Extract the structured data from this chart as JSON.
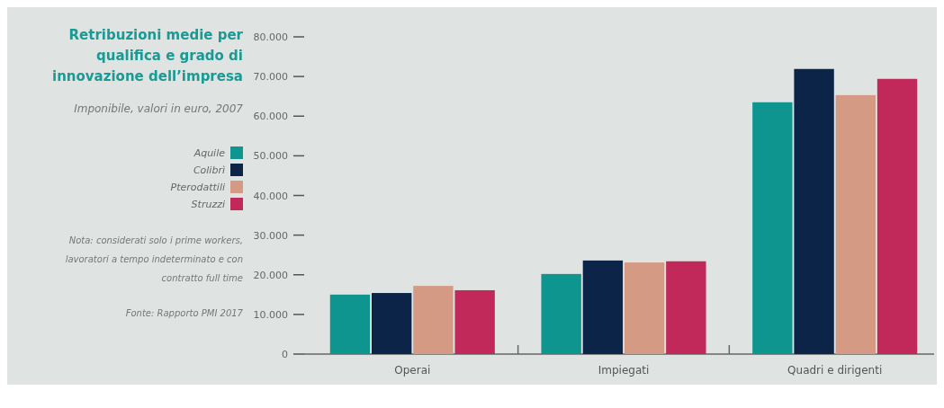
{
  "chart_data": {
    "type": "bar",
    "title": "Retribuzioni medie per qualifica e grado di innovazione dell’impresa",
    "subtitle": "Imponibile, valori in euro, 2007",
    "categories": [
      "Operai",
      "Impiegati",
      "Quadri e dirigenti"
    ],
    "series": [
      {
        "name": "Aquile",
        "color": "#0e9590",
        "values": [
          15000,
          20200,
          63500
        ]
      },
      {
        "name": "Colibrì",
        "color": "#0c2448",
        "values": [
          15400,
          23600,
          71900
        ]
      },
      {
        "name": "Pterodattili",
        "color": "#d49a84",
        "values": [
          17200,
          23100,
          65300
        ]
      },
      {
        "name": "Struzzi",
        "color": "#c0295a",
        "values": [
          16100,
          23400,
          69400
        ]
      }
    ],
    "ylim": [
      0,
      80000
    ],
    "yticks": [
      {
        "value": 0,
        "label": "0"
      },
      {
        "value": 10000,
        "label": "10.000"
      },
      {
        "value": 20000,
        "label": "20.000"
      },
      {
        "value": 30000,
        "label": "30.000"
      },
      {
        "value": 40000,
        "label": "40.000"
      },
      {
        "value": 50000,
        "label": "50.000"
      },
      {
        "value": 60000,
        "label": "60.000"
      },
      {
        "value": 70000,
        "label": "70.000"
      },
      {
        "value": 80000,
        "label": "80.000"
      }
    ],
    "grid": false,
    "legend": "left",
    "annotations": [
      "Nota: considerati solo i prime workers, lavoratori a tempo indeterminato e con contratto full time",
      "Fonte: Rapporto PMI 2017"
    ]
  }
}
